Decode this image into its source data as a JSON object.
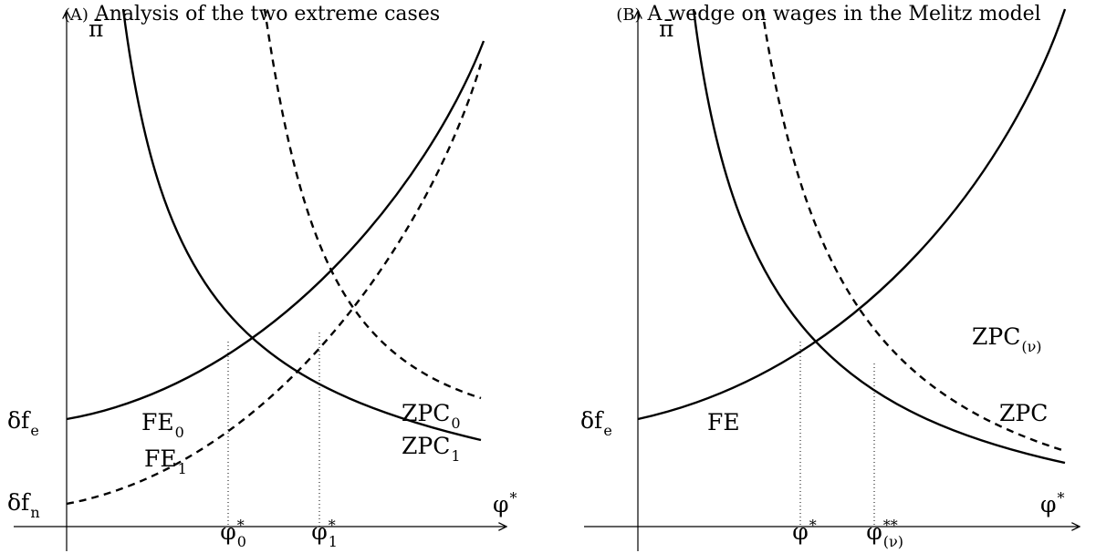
{
  "panels": [
    {
      "tag": "(A)",
      "title": "Analysis of the two extreme cases",
      "y_axis": {
        "base": "π̄"
      },
      "x_axis": {
        "base": "φ",
        "sup": "*"
      },
      "intercepts": [
        {
          "base": "δf",
          "sub": "e"
        },
        {
          "base": "δf",
          "sub": "n"
        }
      ],
      "ticks": [
        {
          "base": "φ",
          "sup": "*",
          "sub": "0"
        },
        {
          "base": "φ",
          "sup": "*",
          "sub": "1"
        }
      ],
      "curve_labels": [
        {
          "base": "FE",
          "sub": "0"
        },
        {
          "base": "FE",
          "sub": "1"
        },
        {
          "base": "ZPC",
          "sub": "1"
        },
        {
          "base": "ZPC",
          "sub": "0"
        }
      ]
    },
    {
      "tag": "(B)",
      "title": "A wedge on wages in the Melitz model",
      "y_axis": {
        "base": "π̄"
      },
      "x_axis": {
        "base": "φ",
        "sup": "*"
      },
      "intercepts": [
        {
          "base": "δf",
          "sub": "e"
        }
      ],
      "ticks": [
        {
          "base": "φ",
          "sup": "*"
        },
        {
          "base": "φ",
          "sup": "**",
          "sub": "(ν)"
        }
      ],
      "curve_labels": [
        {
          "base": "FE"
        },
        {
          "base": "ZPC",
          "sub": "(ν)"
        },
        {
          "base": "ZPC"
        }
      ]
    }
  ]
}
